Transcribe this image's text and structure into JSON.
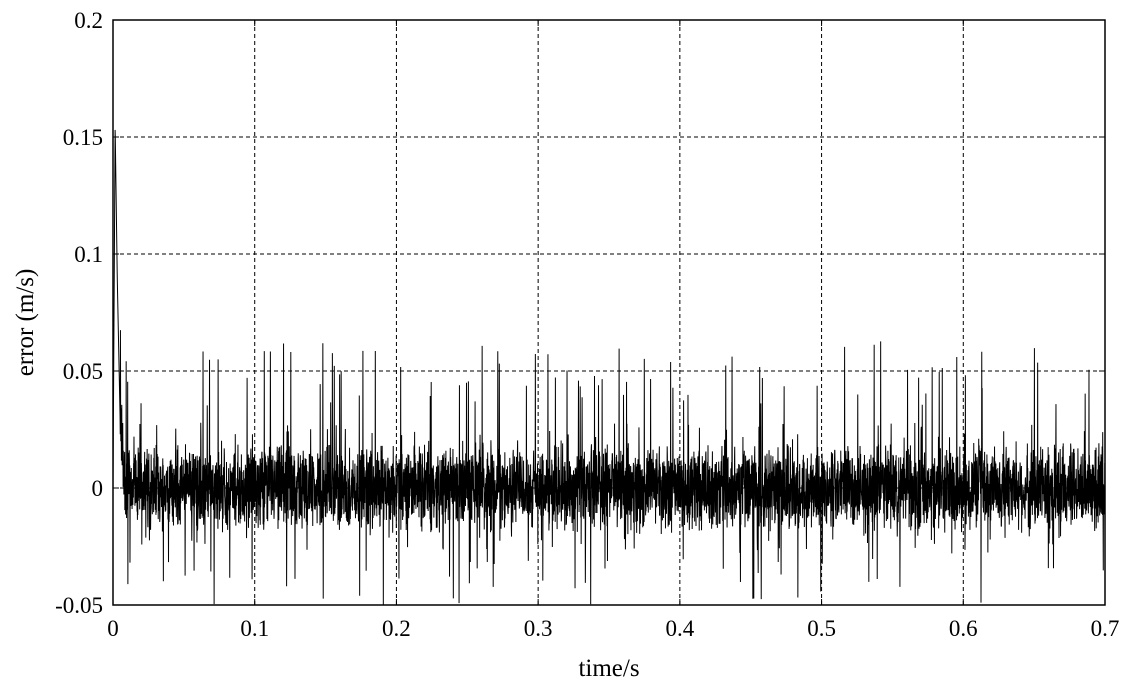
{
  "chart_data": {
    "type": "line",
    "title": "",
    "xlabel": "time/s",
    "ylabel": "error (m/s)",
    "xlim": [
      0,
      0.7
    ],
    "ylim": [
      -0.05,
      0.2
    ],
    "xticks": [
      0,
      0.1,
      0.2,
      0.3,
      0.4,
      0.5,
      0.6,
      0.7
    ],
    "yticks": [
      -0.05,
      0,
      0.05,
      0.1,
      0.15,
      0.2
    ],
    "xtick_labels": [
      "0",
      "0.1",
      "0.2",
      "0.3",
      "0.4",
      "0.5",
      "0.6",
      "0.7"
    ],
    "ytick_labels": [
      "-0.05",
      "0",
      "0.05",
      "0.1",
      "0.15",
      "0.2"
    ],
    "grid": true,
    "grid_style": "dashed",
    "line_color": "#000000",
    "series": [
      {
        "name": "",
        "x": [
          0,
          0.0015,
          0.003,
          0.005,
          0.008,
          0.012,
          0.02,
          0.05,
          0.1,
          0.15,
          0.2,
          0.25,
          0.3,
          0.35,
          0.4,
          0.45,
          0.5,
          0.55,
          0.6,
          0.65,
          0.7
        ],
        "y": [
          0.0,
          0.155,
          0.09,
          0.03,
          0.005,
          0.0,
          0.0,
          0.0,
          0.0,
          0.0,
          0.0,
          0.0,
          0.0,
          0.0,
          0.0,
          0.0,
          0.0,
          0.0,
          0.0,
          0.0,
          0.0
        ],
        "noise_min": -0.05,
        "noise_max": 0.063,
        "noise_typical": 0.02
      }
    ]
  }
}
